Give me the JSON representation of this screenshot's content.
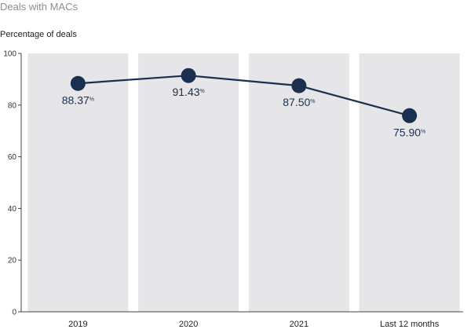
{
  "chart_data": {
    "type": "line",
    "title": "Deals with MACs",
    "ylabel": "Percentage of deals",
    "xlabel": "",
    "categories": [
      "2019",
      "2020",
      "2021",
      "Last 12 months"
    ],
    "series": [
      {
        "values": [
          88.37,
          91.43,
          87.5,
          75.9
        ]
      }
    ],
    "data_labels": [
      "88.37",
      "91.43",
      "87.50",
      "75.90"
    ],
    "data_label_suffix": "%",
    "yticks": [
      "0",
      "20",
      "40",
      "60",
      "80",
      "100"
    ],
    "ylim": [
      0,
      100
    ],
    "grid": false,
    "colors": {
      "line": "#1b2f4e",
      "marker": "#1b2f4e",
      "band": "#e6e6e9",
      "label": "#1b2f4e"
    }
  }
}
